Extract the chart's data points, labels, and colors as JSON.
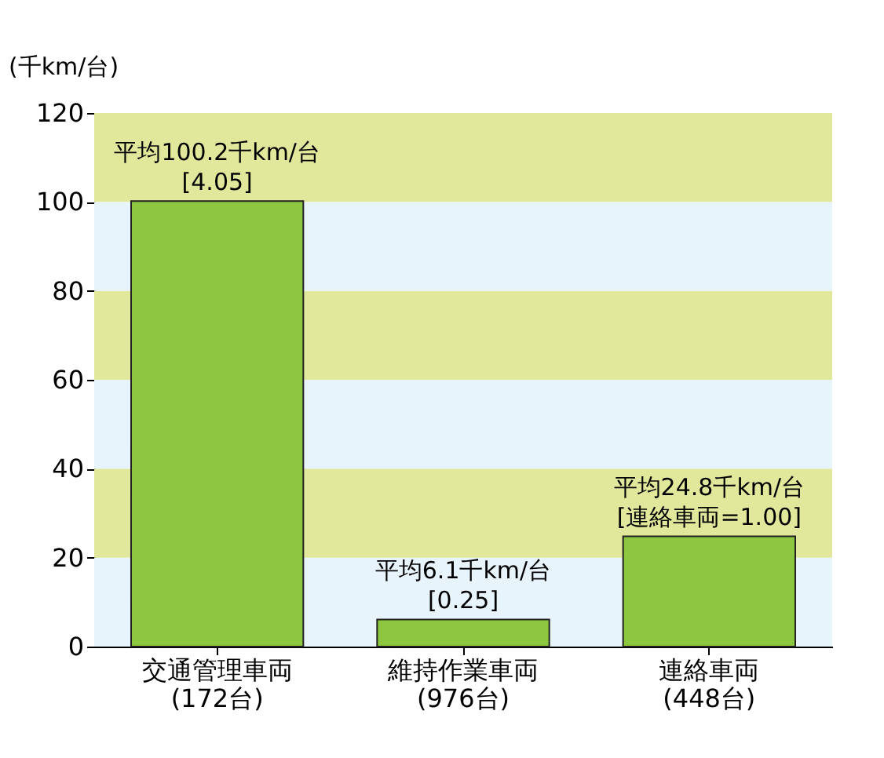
{
  "chart_data": {
    "type": "bar",
    "ylabel": "(千km/台)",
    "categories": [
      "交通管理車両\n(172台)",
      "維持作業車両\n(976台)",
      "連絡車両\n(448台)"
    ],
    "values": [
      100.2,
      6.1,
      24.8
    ],
    "color": "#8dc63f",
    "ylim": [
      0,
      120
    ],
    "yticks": [
      0,
      20,
      40,
      60,
      80,
      100,
      120
    ],
    "bands": [
      {
        "axis": "y",
        "from": 0,
        "to": 20,
        "color": "#e8f4fb"
      },
      {
        "axis": "y",
        "from": 20,
        "to": 40,
        "color": "#e1e89c"
      },
      {
        "axis": "y",
        "from": 40,
        "to": 60,
        "color": "#e8f4fb"
      },
      {
        "axis": "y",
        "from": 60,
        "to": 80,
        "color": "#e1e89c"
      },
      {
        "axis": "y",
        "from": 80,
        "to": 100,
        "color": "#e8f4fb"
      },
      {
        "axis": "y",
        "from": 100,
        "to": 120,
        "color": "#e1e89c"
      }
    ],
    "annotations": [
      {
        "text": "平均100.2千km/台\n[4.05]",
        "x": "交通管理車両\n(172台)",
        "y": 100.2
      },
      {
        "text": "平均6.1千km/台\n[0.25]",
        "x": "維持作業車両\n(976台)",
        "y": 6.1
      },
      {
        "text": "平均24.8千km/台\n[連絡車両=1.00]",
        "x": "連絡車両\n(448台)",
        "y": 24.8
      }
    ]
  }
}
